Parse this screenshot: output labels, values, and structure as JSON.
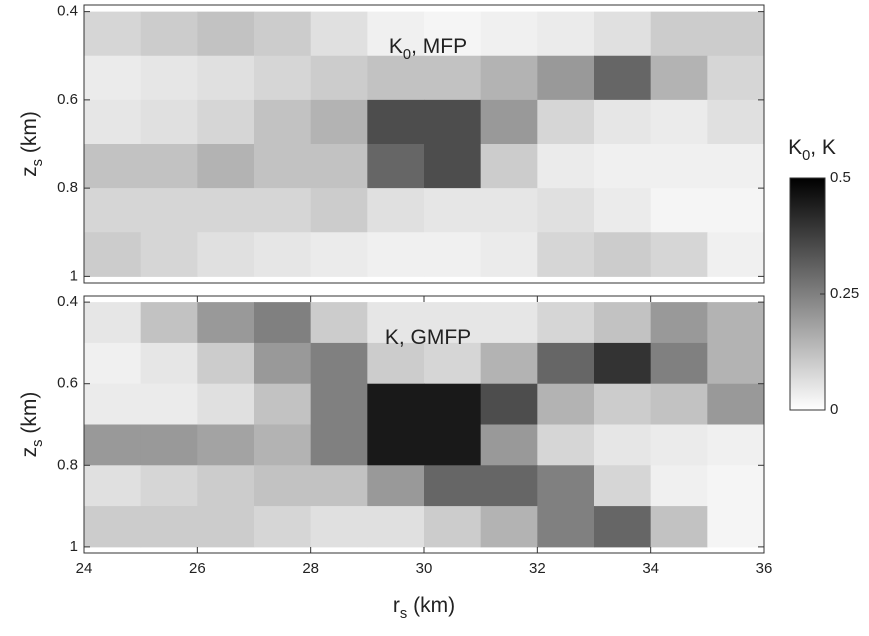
{
  "chart_data": [
    {
      "type": "heatmap",
      "annotation": {
        "main": "K",
        "sub": "0",
        "rest": ", MFP"
      },
      "ylabel": {
        "main": "z",
        "sub": "s",
        "rest": " (km)"
      },
      "xlim": [
        24,
        36
      ],
      "ylim": [
        0.385,
        1.015
      ],
      "yticks": [
        0.4,
        0.6,
        0.8,
        1
      ],
      "xbins": [
        24,
        25,
        26,
        27,
        28,
        29,
        30,
        31,
        32,
        33,
        34,
        35,
        36
      ],
      "ybins": [
        0.4,
        0.5,
        0.6,
        0.7,
        0.8,
        0.9,
        1.0
      ],
      "z": [
        [
          0.08,
          0.1,
          0.12,
          0.1,
          0.06,
          0.03,
          0.02,
          0.03,
          0.04,
          0.06,
          0.1,
          0.1
        ],
        [
          0.04,
          0.05,
          0.06,
          0.08,
          0.1,
          0.12,
          0.12,
          0.15,
          0.2,
          0.3,
          0.15,
          0.08
        ],
        [
          0.05,
          0.06,
          0.08,
          0.12,
          0.15,
          0.35,
          0.35,
          0.2,
          0.08,
          0.05,
          0.04,
          0.06
        ],
        [
          0.12,
          0.12,
          0.15,
          0.12,
          0.12,
          0.3,
          0.35,
          0.1,
          0.04,
          0.03,
          0.03,
          0.03
        ],
        [
          0.08,
          0.08,
          0.08,
          0.08,
          0.1,
          0.06,
          0.05,
          0.05,
          0.06,
          0.04,
          0.02,
          0.02
        ],
        [
          0.1,
          0.08,
          0.06,
          0.05,
          0.04,
          0.03,
          0.03,
          0.04,
          0.08,
          0.1,
          0.08,
          0.03
        ]
      ]
    },
    {
      "type": "heatmap",
      "annotation": {
        "main": "K, GMFP"
      },
      "ylabel": {
        "main": "z",
        "sub": "s",
        "rest": " (km)"
      },
      "xlabel": {
        "main": "r",
        "sub": "s",
        "rest": " (km)"
      },
      "xlim": [
        24,
        36
      ],
      "ylim": [
        0.385,
        1.015
      ],
      "xticks": [
        24,
        26,
        28,
        30,
        32,
        34,
        36
      ],
      "yticks": [
        0.4,
        0.6,
        0.8,
        1
      ],
      "xbins": [
        24,
        25,
        26,
        27,
        28,
        29,
        30,
        31,
        32,
        33,
        34,
        35,
        36
      ],
      "ybins": [
        0.4,
        0.5,
        0.6,
        0.7,
        0.8,
        0.9,
        1.0
      ],
      "z": [
        [
          0.05,
          0.12,
          0.2,
          0.25,
          0.1,
          0.05,
          0.05,
          0.05,
          0.08,
          0.12,
          0.2,
          0.15
        ],
        [
          0.03,
          0.05,
          0.1,
          0.2,
          0.25,
          0.1,
          0.08,
          0.15,
          0.3,
          0.4,
          0.25,
          0.15
        ],
        [
          0.04,
          0.04,
          0.06,
          0.12,
          0.25,
          0.45,
          0.45,
          0.35,
          0.15,
          0.1,
          0.12,
          0.2
        ],
        [
          0.2,
          0.2,
          0.18,
          0.15,
          0.25,
          0.45,
          0.45,
          0.2,
          0.08,
          0.05,
          0.04,
          0.03
        ],
        [
          0.06,
          0.08,
          0.1,
          0.12,
          0.12,
          0.2,
          0.3,
          0.3,
          0.25,
          0.08,
          0.03,
          0.02
        ],
        [
          0.1,
          0.1,
          0.1,
          0.08,
          0.06,
          0.06,
          0.1,
          0.15,
          0.25,
          0.3,
          0.12,
          0.02
        ]
      ]
    }
  ],
  "colorbar": {
    "label": {
      "main": "K",
      "sub": "0",
      "rest": ", K"
    },
    "clim": [
      0,
      0.5
    ],
    "ticks": [
      0,
      0.25,
      0.5
    ]
  }
}
